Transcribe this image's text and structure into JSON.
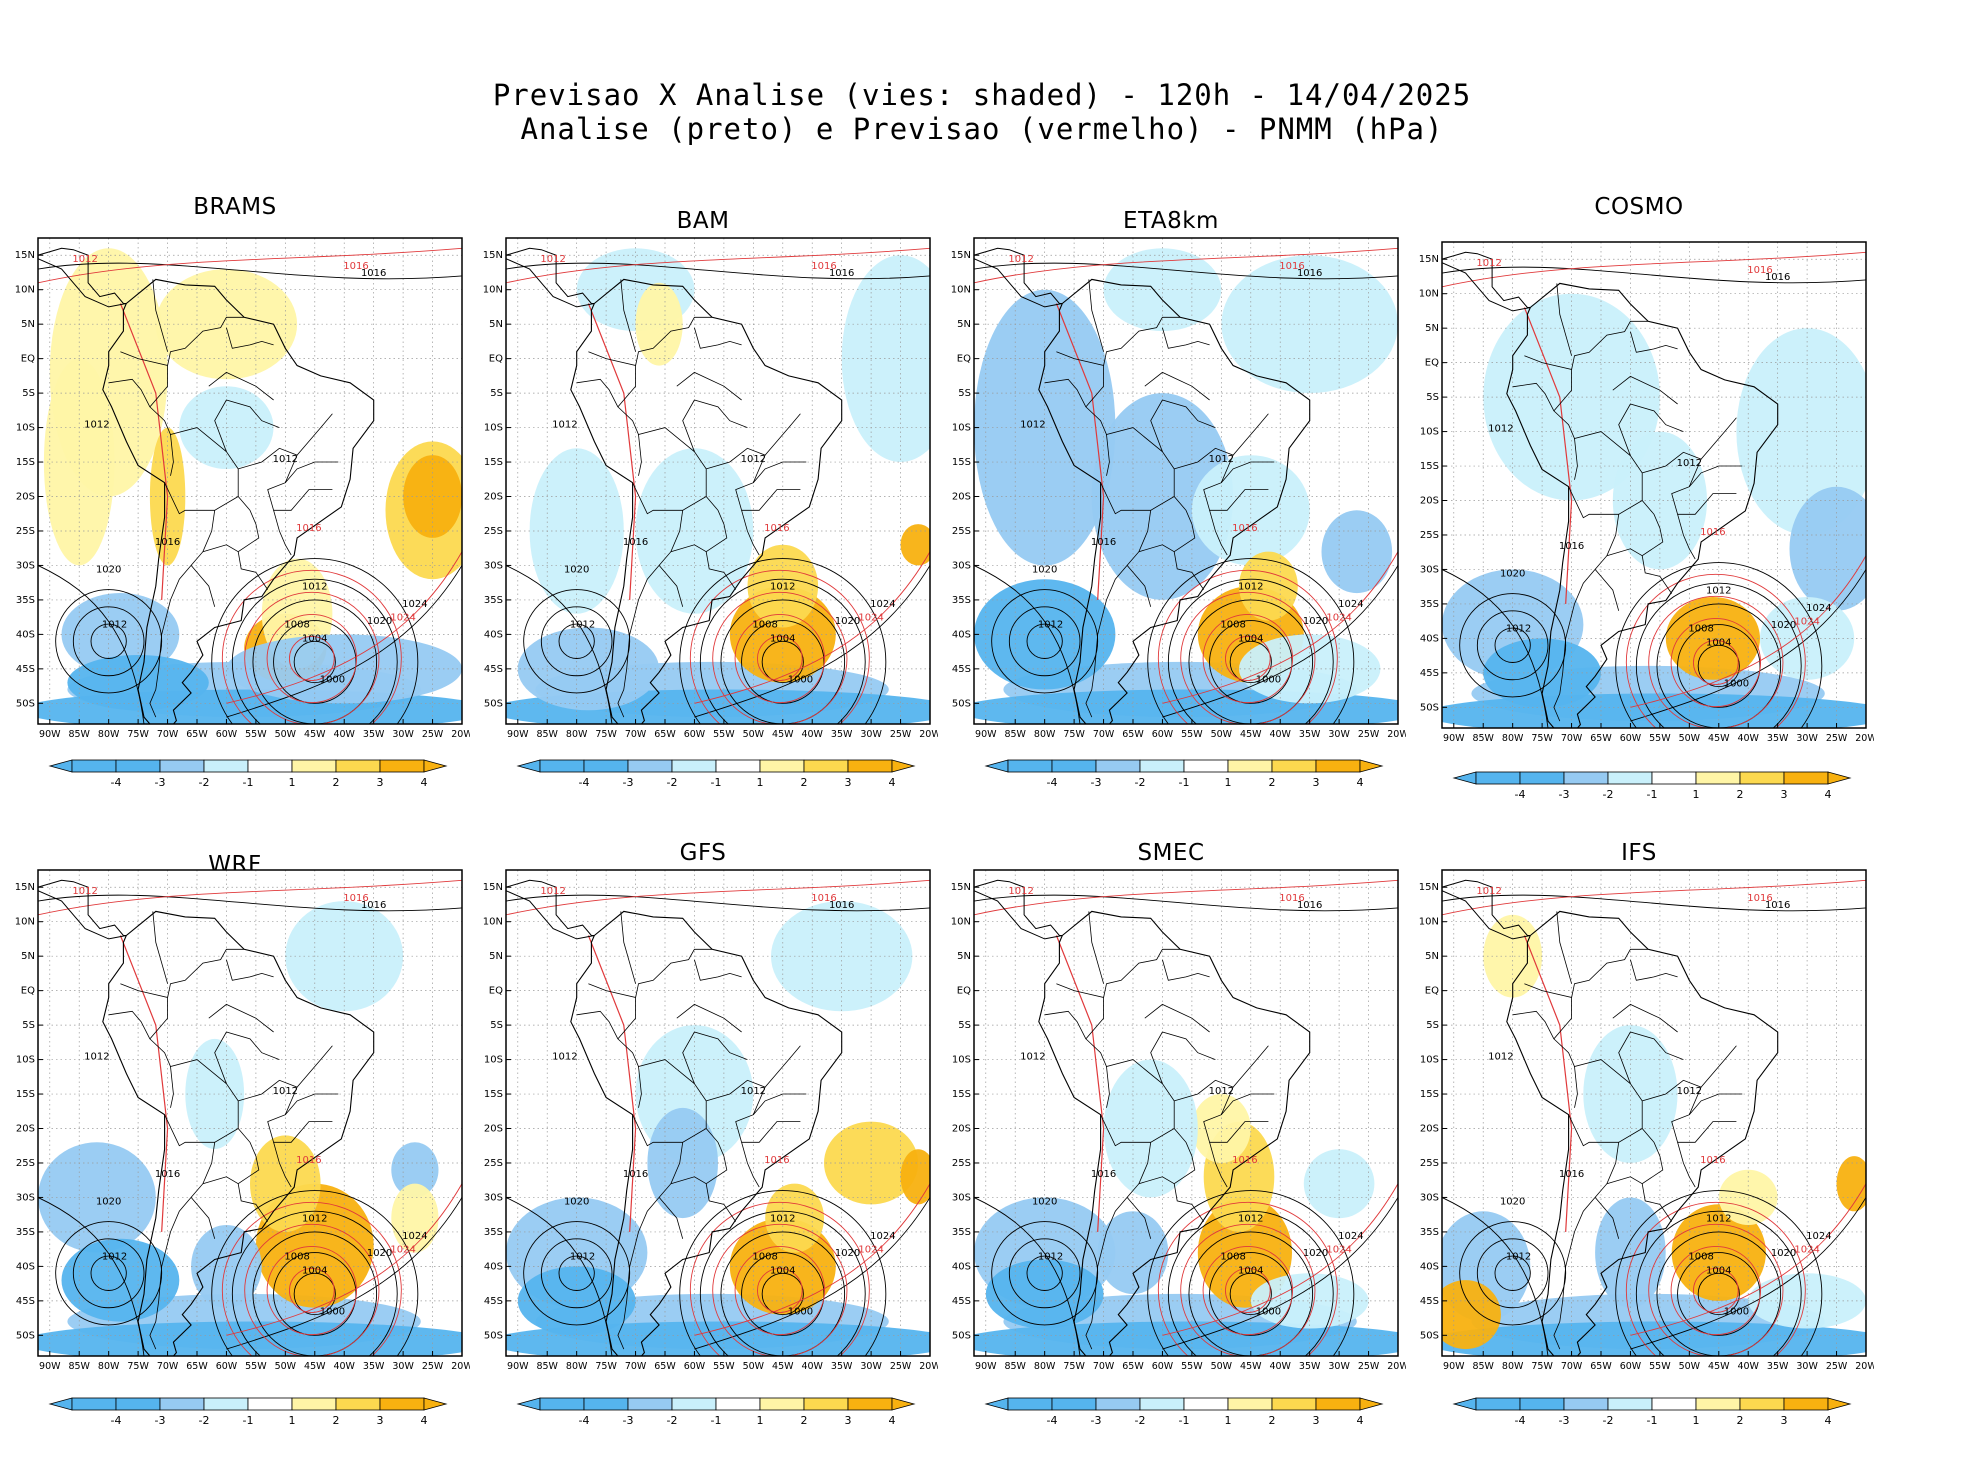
{
  "title": {
    "line1": "Previsao X Analise (vies: shaded) - 120h - 14/04/2025",
    "line2": "Analise (preto) e Previsao (vermelho) - PNMM (hPa)"
  },
  "colors": {
    "dark_blue": "#55b4ee",
    "mid_blue": "#96caf2",
    "light_blue": "#c9f0fb",
    "white": "#ffffff",
    "light_yellow": "#fff5a6",
    "mid_yellow": "#fcd94f",
    "orange": "#f8b110",
    "analysis_contour": "#000000",
    "forecast_contour": "#e0393b"
  },
  "axes": {
    "lat_labels": [
      "15N",
      "10N",
      "5N",
      "EQ",
      "5S",
      "10S",
      "15S",
      "20S",
      "25S",
      "30S",
      "35S",
      "40S",
      "45S",
      "50S"
    ],
    "lon_labels": [
      "90W",
      "85W",
      "80W",
      "75W",
      "70W",
      "65W",
      "60W",
      "55W",
      "50W",
      "45W",
      "40W",
      "35W",
      "30W",
      "25W",
      "20W"
    ]
  },
  "colorbar": {
    "ticks": [
      "-4",
      "-3",
      "-2",
      "-1",
      "1",
      "2",
      "3",
      "4"
    ]
  },
  "contours": {
    "c1000": "1000",
    "c1004": "1004",
    "c1008": "1008",
    "c1012": "1012",
    "c1016": "1016",
    "c1020": "1020",
    "c1024": "1024"
  },
  "panels": [
    {
      "model": "BRAMS"
    },
    {
      "model": "BAM"
    },
    {
      "model": "ETA8km"
    },
    {
      "model": "COSMO"
    },
    {
      "model": "WRF"
    },
    {
      "model": "GFS"
    },
    {
      "model": "SMEC"
    },
    {
      "model": "IFS"
    }
  ]
}
